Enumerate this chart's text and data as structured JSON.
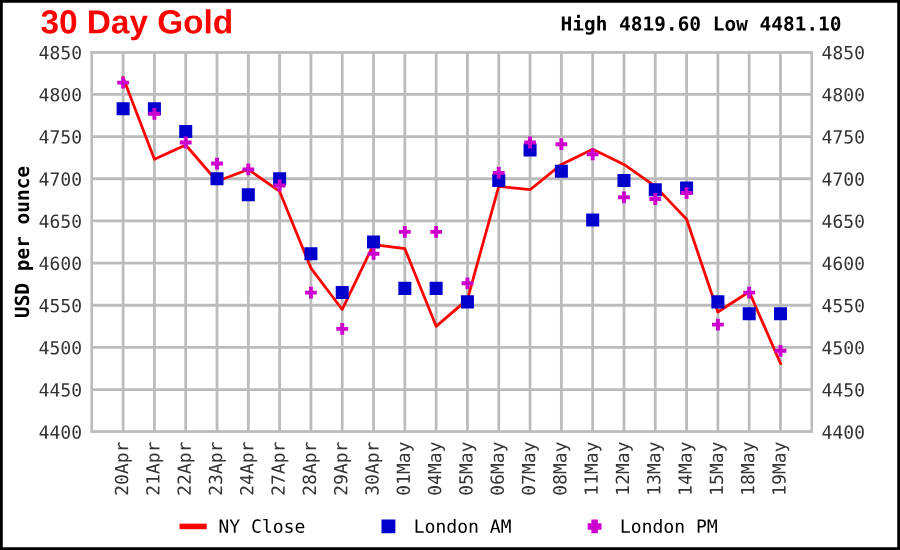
{
  "chart_data": {
    "type": "line",
    "title": "30 Day Gold",
    "subtitle": "High 4819.60 Low 4481.10",
    "ylabel": "USD per ounce",
    "categories": [
      "20Apr",
      "21Apr",
      "22Apr",
      "23Apr",
      "24Apr",
      "27Apr",
      "28Apr",
      "29Apr",
      "30Apr",
      "01May",
      "04May",
      "05May",
      "06May",
      "07May",
      "08May",
      "11May",
      "12May",
      "13May",
      "14May",
      "15May",
      "18May",
      "19May"
    ],
    "series": [
      {
        "name": "NY Close",
        "color": "#ff0000",
        "marker": "none",
        "values": [
          4820,
          4723,
          4740,
          4697,
          4711,
          4685,
          4594,
          4545,
          4622,
          4617,
          4525,
          4557,
          4691,
          4687,
          4717,
          4735,
          4717,
          4691,
          4652,
          4542,
          4566,
          4481
        ]
      },
      {
        "name": "London AM",
        "type": "scatter",
        "color": "#0000cc",
        "marker": "square",
        "values": [
          4783,
          4783,
          4756,
          4700,
          4681,
          4700,
          4611,
          4565,
          4625,
          4570,
          4570,
          4554,
          4698,
          4734,
          4709,
          4651,
          4698,
          4687,
          4689,
          4554,
          4540,
          4540
        ]
      },
      {
        "name": "London PM",
        "type": "scatter",
        "color": "#cc00cc",
        "marker": "cross",
        "values": [
          4814,
          4777,
          4743,
          4718,
          4711,
          4692,
          4565,
          4522,
          4611,
          4637,
          4637,
          4576,
          4707,
          4743,
          4741,
          4729,
          4678,
          4676,
          4683,
          4527,
          4565,
          4496
        ]
      }
    ],
    "ylim": [
      4400,
      4850
    ],
    "yticks": [
      4400,
      4450,
      4500,
      4550,
      4600,
      4650,
      4700,
      4750,
      4800,
      4850
    ],
    "y2lim": [
      4400,
      4850
    ],
    "y2ticks": [
      4400,
      4450,
      4500,
      4550,
      4600,
      4650,
      4700,
      4750,
      4800,
      4850
    ],
    "grid": true,
    "legend": "bottom"
  }
}
